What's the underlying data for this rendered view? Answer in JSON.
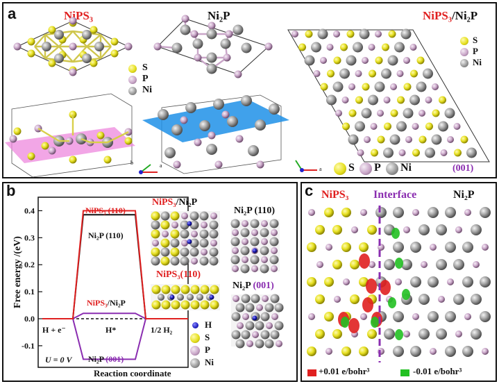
{
  "panel_a": {
    "label": "a",
    "title_nips3": "NiPS₃",
    "title_ni2p": "Ni₂P",
    "title_het_part1": "NiPS₃",
    "title_het_part2": "/Ni₂P",
    "legend": [
      {
        "label": "S",
        "color": "#e6e021"
      },
      {
        "label": "P",
        "color": "#c9a6c8"
      },
      {
        "label": "Ni",
        "color": "#9a9a9a"
      }
    ],
    "axis_b": "b",
    "axis_a": "a",
    "facet": "(001)"
  },
  "panel_b": {
    "label": "b",
    "ylabel": "Free energy /(eV)",
    "xlabel": "Reaction coordinate",
    "state_left": "H + e⁻",
    "state_mid": "H*",
    "state_right": "1/2 H₂",
    "u_label": "U = 0 V",
    "curves": {
      "nips3_110": {
        "label": "NiPS₃ (110)",
        "value": 0.4,
        "color": "#e02020"
      },
      "ni2p_110": {
        "label": "Ni₂P (110)",
        "value": 0.385,
        "color": "#111111"
      },
      "het_part1": "NiPS₃",
      "het_part2": "/Ni₂P",
      "het": {
        "value": 0.02,
        "color": "#8a2db0"
      },
      "ni2p_001_part1": "Ni₂P",
      "ni2p_001_part2": "(001)",
      "ni2p_001": {
        "value": -0.15,
        "color": "#8a2db0"
      }
    },
    "yticks": [
      "0.4",
      "0.3",
      "0.2",
      "0.1",
      "0.0",
      "-0.1"
    ],
    "ylim": [
      -0.18,
      0.45
    ],
    "struct_labels": {
      "het_part1": "NiPS₃",
      "het_part2": "/Ni₂P",
      "nips3_110": "NiPS₃(110)",
      "ni2p_110": "Ni₂P (110)",
      "ni2p_001_part1": "Ni₂P",
      "ni2p_001_part2": "(001)"
    },
    "legend": [
      {
        "label": "H",
        "color": "#2020c0"
      },
      {
        "label": "S",
        "color": "#e6e021"
      },
      {
        "label": "P",
        "color": "#c9a6c8"
      },
      {
        "label": "Ni",
        "color": "#9a9a9a"
      }
    ]
  },
  "panel_c": {
    "label": "c",
    "title_left": "NiPS₃",
    "title_mid": "Interface",
    "title_right": "Ni₂P",
    "legend_pos": "+0.01 e/bohr³",
    "legend_neg": "-0.01 e/bohr³",
    "color_pos": "#e02020",
    "color_neg": "#22c022"
  }
}
